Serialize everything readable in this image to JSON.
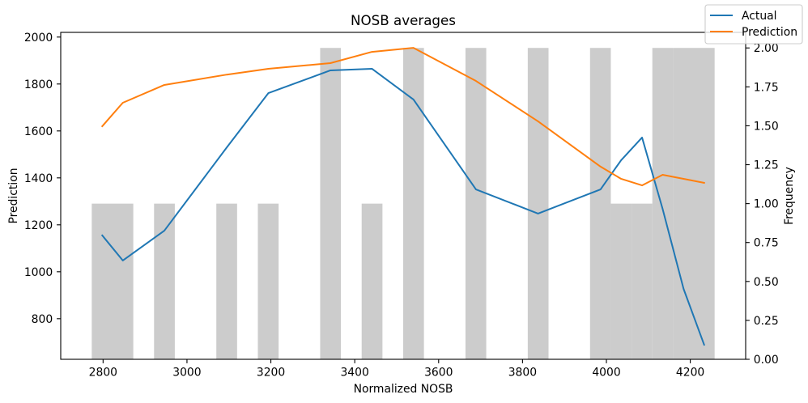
{
  "chart_data": {
    "type": "line",
    "title": "NOSB averages",
    "xlabel": "Normalized NOSB",
    "ylabel": "Prediction",
    "y2label": "Frequency",
    "xlim": [
      2699,
      4332
    ],
    "ylim": [
      627,
      2020
    ],
    "y2lim": [
      0,
      2.1
    ],
    "xticks": [
      "2800",
      "3000",
      "3200",
      "3400",
      "3600",
      "3800",
      "4000",
      "4200"
    ],
    "yticks": [
      "800",
      "1000",
      "1200",
      "1400",
      "1600",
      "1800",
      "2000"
    ],
    "y2ticks": [
      "0.00",
      "0.25",
      "0.50",
      "0.75",
      "1.00",
      "1.25",
      "1.50",
      "1.75",
      "2.00"
    ],
    "grid": false,
    "legend": "top-right",
    "series": [
      {
        "name": "Actual",
        "color": "#1f77b4",
        "x": [
          2798,
          2847,
          2946,
          3095,
          3194,
          3342,
          3441,
          3540,
          3689,
          3837,
          3986,
          4035,
          4085,
          4134,
          4184,
          4233
        ],
        "y": [
          1155,
          1048,
          1175,
          1530,
          1761,
          1858,
          1865,
          1734,
          1351,
          1248,
          1351,
          1475,
          1572,
          1268,
          927,
          689
        ]
      },
      {
        "name": "Prediction",
        "color": "#ff7f0e",
        "x": [
          2798,
          2847,
          2946,
          3095,
          3194,
          3342,
          3441,
          3540,
          3689,
          3837,
          3986,
          4035,
          4085,
          4134,
          4184,
          4233
        ],
        "y": [
          1620,
          1720,
          1796,
          1840,
          1865,
          1889,
          1937,
          1954,
          1813,
          1641,
          1448,
          1396,
          1368,
          1413,
          1396,
          1379
        ]
      }
    ],
    "histogram": {
      "color": "#cccccc",
      "bin_edges": [
        2773,
        2822.5,
        2872,
        2921.5,
        2971,
        3020.5,
        3070,
        3119.5,
        3169,
        3218.5,
        3268,
        3317.5,
        3367,
        3416.5,
        3466,
        3515.5,
        3565,
        3614.5,
        3664,
        3713.5,
        3763,
        3812.5,
        3862,
        3911.5,
        3961,
        4010.5,
        4060,
        4109.5,
        4159,
        4208.5,
        4258
      ],
      "counts": [
        1,
        1,
        0,
        1,
        0,
        0,
        1,
        0,
        1,
        0,
        0,
        2,
        0,
        1,
        0,
        2,
        0,
        0,
        2,
        0,
        0,
        2,
        0,
        0,
        2,
        1,
        1,
        2,
        2,
        2
      ]
    }
  }
}
